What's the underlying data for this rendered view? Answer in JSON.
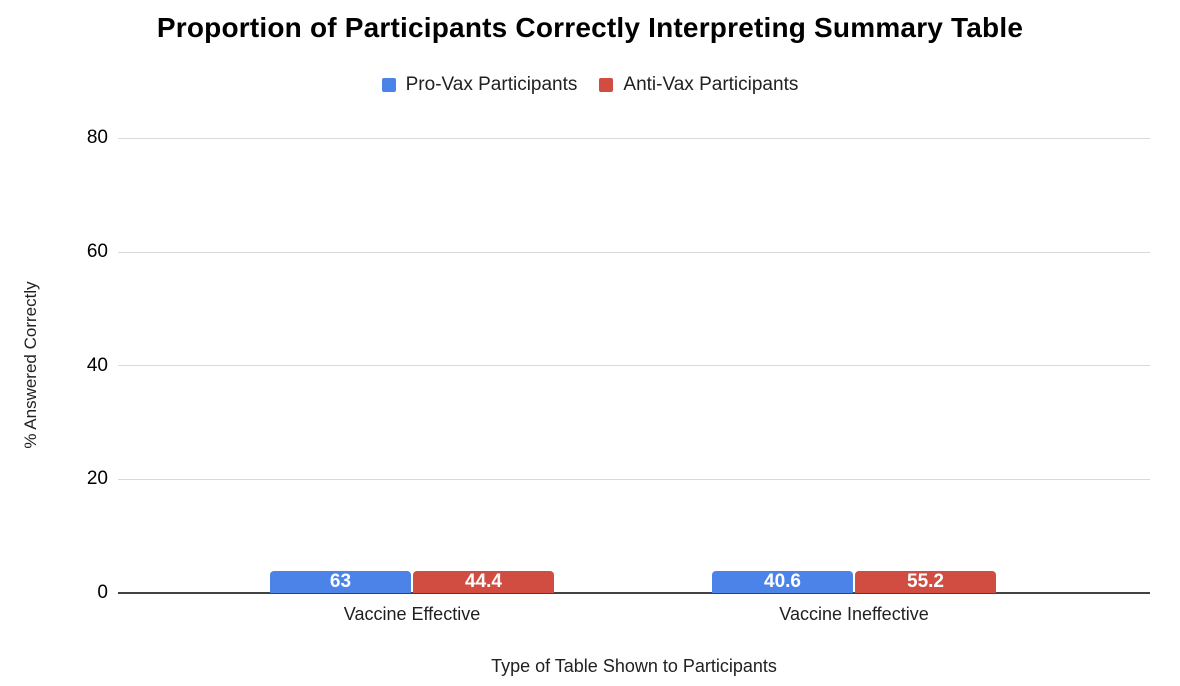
{
  "chart_data": {
    "type": "bar",
    "title": "Proportion of Participants Correctly Interpreting Summary Table",
    "categories": [
      "Vaccine Effective",
      "Vaccine Ineffective"
    ],
    "series": [
      {
        "name": "Pro-Vax Participants",
        "color": "#4C83E8",
        "values": [
          63,
          40.6
        ]
      },
      {
        "name": "Anti-Vax Participants",
        "color": "#D14D42",
        "values": [
          44.4,
          55.2
        ]
      }
    ],
    "xlabel": "Type of Table Shown to Participants",
    "ylabel": "% Answered Correctly",
    "ylim": [
      0,
      80
    ],
    "yticks": [
      0,
      20,
      40,
      60,
      80
    ],
    "grid": true,
    "legend_position": "top",
    "bar_labels": true,
    "colors": {
      "gridline": "#d9d9d9",
      "zero_axis": "#424242",
      "bar_label_text": "#ffffff",
      "title_text": "#000000"
    }
  }
}
